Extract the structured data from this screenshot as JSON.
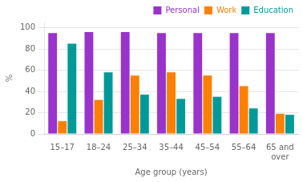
{
  "chart_data": {
    "type": "bar",
    "categories": [
      "15–17",
      "18–24",
      "25–34",
      "35–44",
      "45–54",
      "55–64",
      "65 and\nover"
    ],
    "series": [
      {
        "name": "Personal",
        "color": "#9933CC",
        "values": [
          95,
          96,
          96,
          95,
          95,
          95,
          95
        ]
      },
      {
        "name": "Work",
        "color": "#FF8000",
        "values": [
          12,
          32,
          55,
          58,
          55,
          45,
          19
        ]
      },
      {
        "name": "Education",
        "color": "#009999",
        "values": [
          85,
          58,
          37,
          33,
          35,
          24,
          18
        ]
      }
    ],
    "xlabel": "Age group (years)",
    "ylabel": "%",
    "ylim": [
      0,
      105
    ],
    "yticks": [
      0,
      20,
      40,
      60,
      80,
      100
    ],
    "grid": true,
    "legend": "upper right"
  }
}
